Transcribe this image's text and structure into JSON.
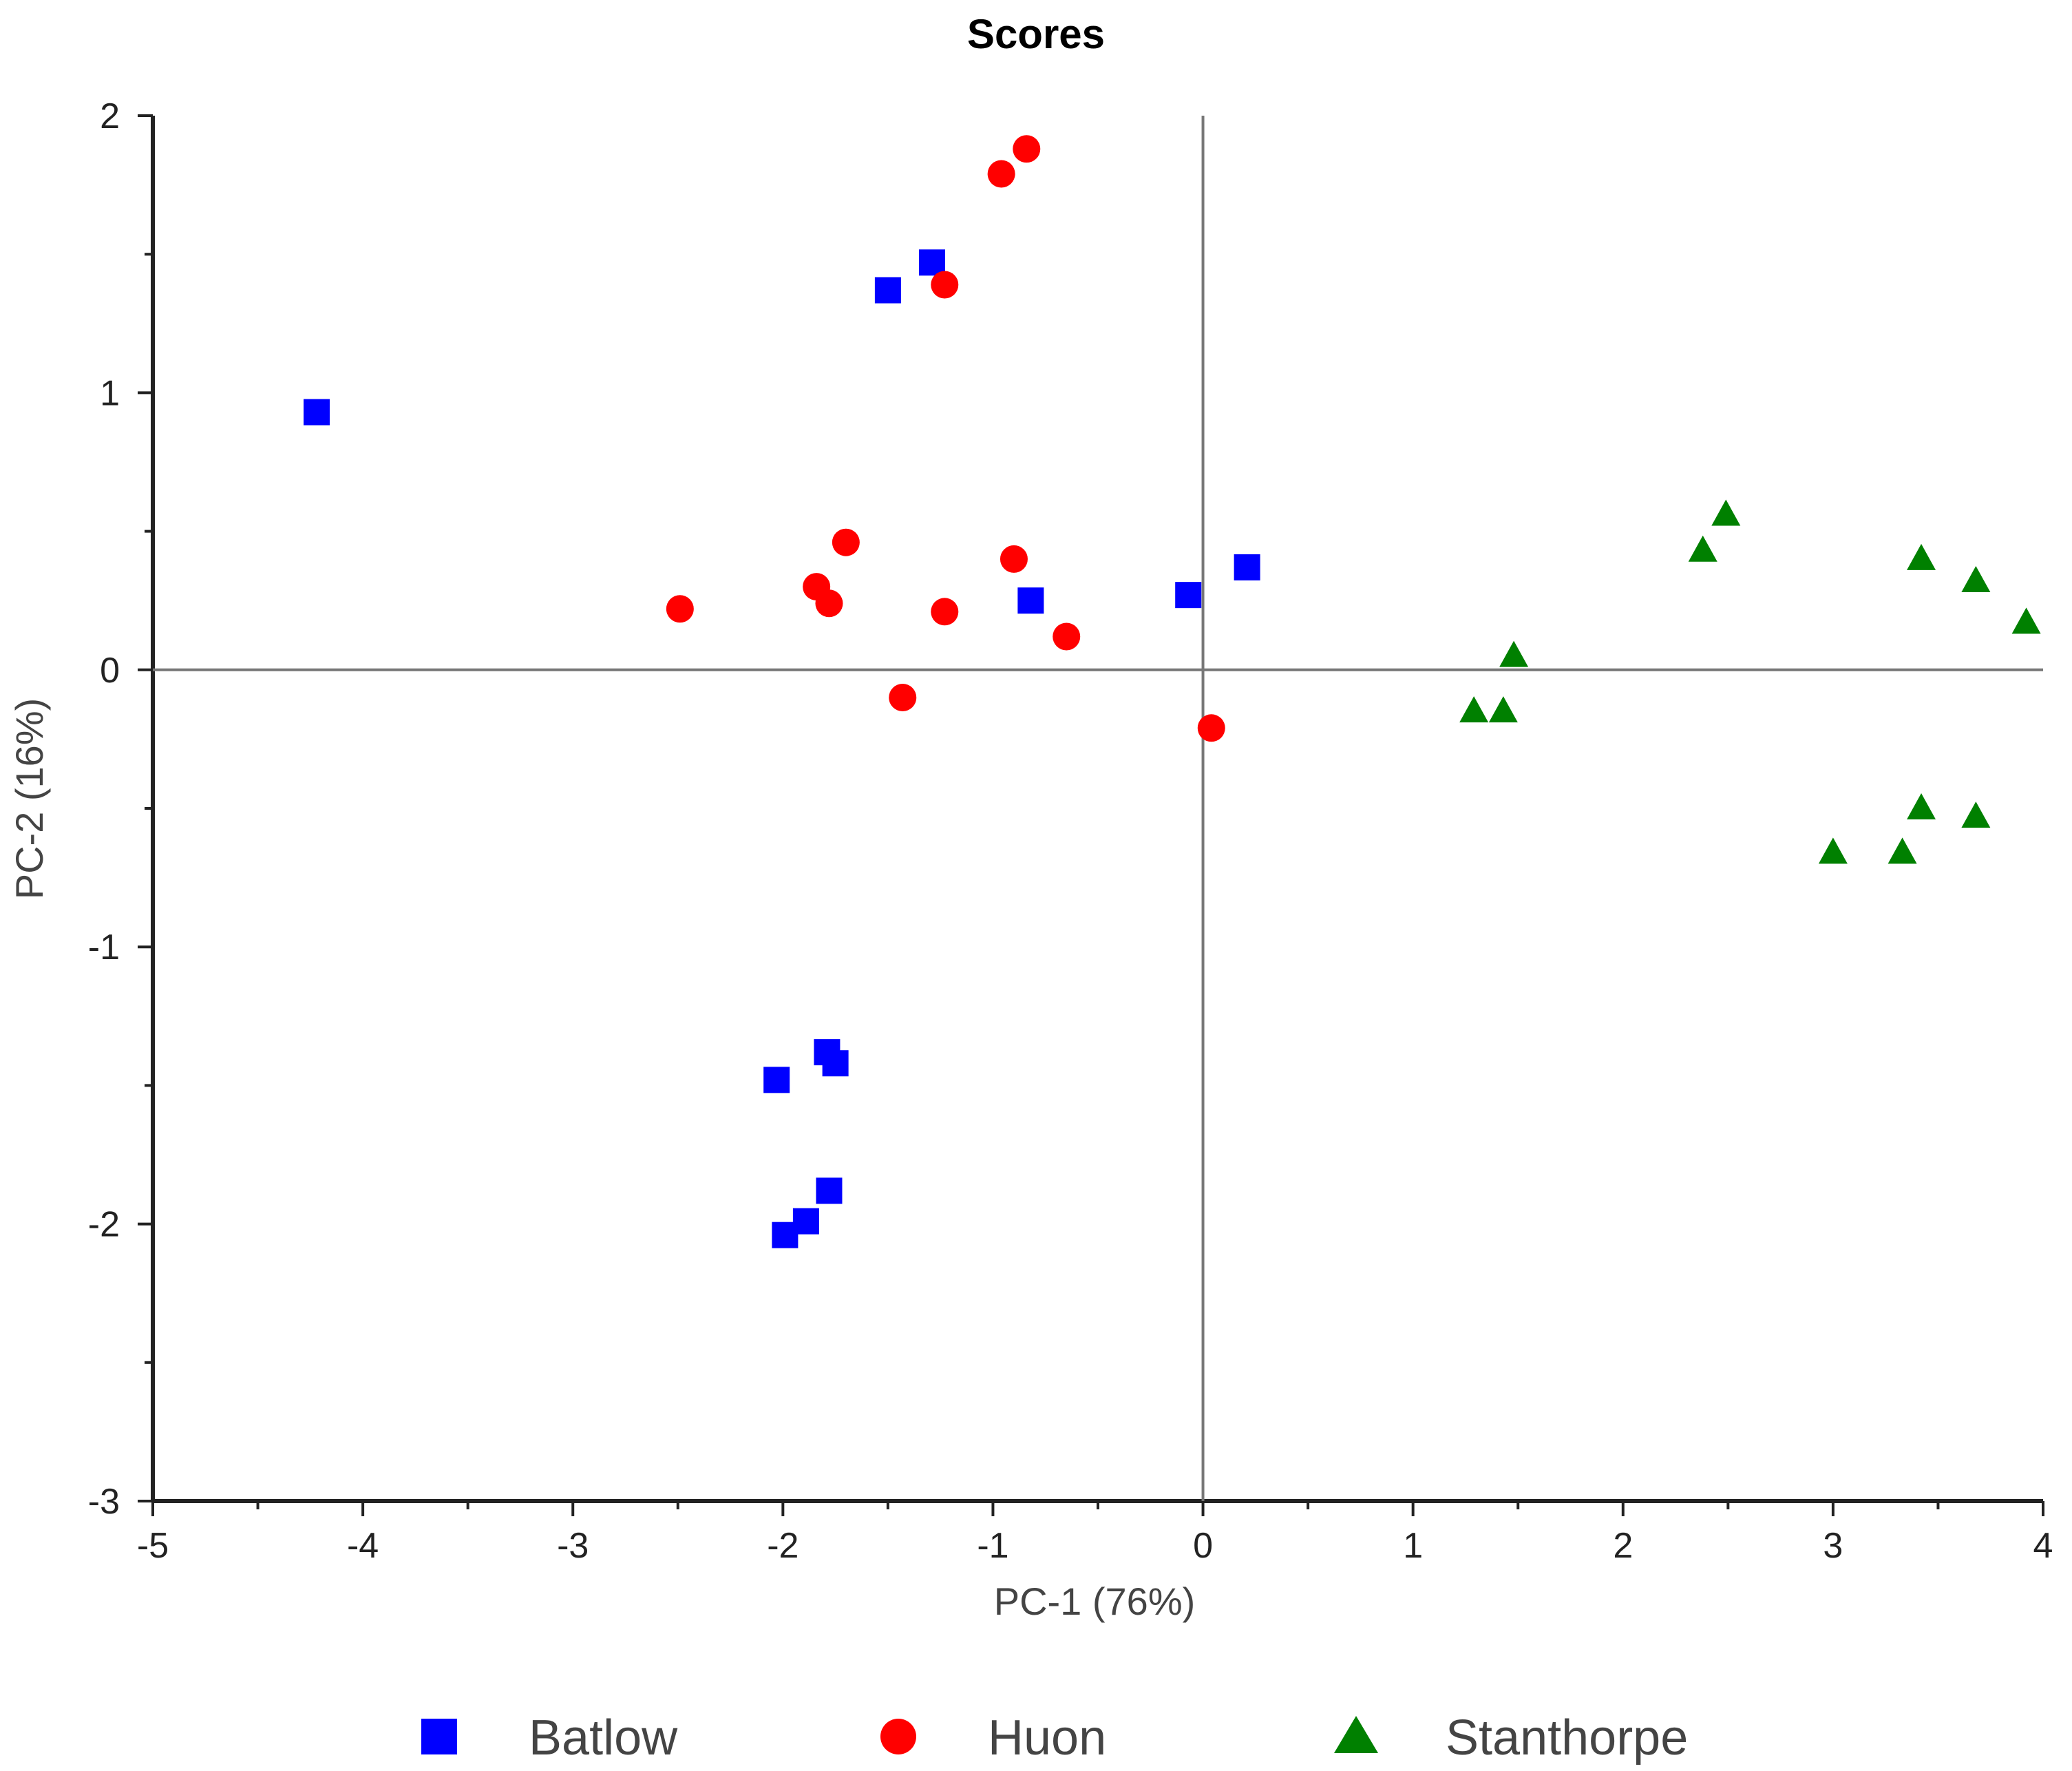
{
  "chart_data": {
    "type": "scatter",
    "title": "Scores",
    "xlabel": "PC-1 (76%)",
    "ylabel": "PC-2 (16%)",
    "xlim": [
      -5,
      4
    ],
    "ylim": [
      -3,
      2
    ],
    "xticks": [
      -5,
      -4,
      -3,
      -2,
      -1,
      0,
      1,
      2,
      3,
      4
    ],
    "yticks": [
      -3,
      -2,
      -1,
      0,
      1,
      2
    ],
    "xtick_labels": [
      "-5",
      "-4",
      "-3",
      "-2",
      "-1",
      "0",
      "1",
      "2",
      "3",
      "4"
    ],
    "ytick_labels": [
      "-3",
      "-2",
      "-1",
      "0",
      "1",
      "2"
    ],
    "grid": false,
    "reference_lines": {
      "x": 0,
      "y": 0
    },
    "legend_position": "bottom",
    "series": [
      {
        "name": "Batlow",
        "marker": "square",
        "color": "#0000ff",
        "points": [
          [
            -4.22,
            0.93
          ],
          [
            -1.5,
            1.37
          ],
          [
            -1.29,
            1.47
          ],
          [
            -0.82,
            0.25
          ],
          [
            -0.07,
            0.27
          ],
          [
            0.21,
            0.37
          ],
          [
            -2.03,
            -1.48
          ],
          [
            -1.79,
            -1.38
          ],
          [
            -1.75,
            -1.42
          ],
          [
            -1.78,
            -1.88
          ],
          [
            -1.89,
            -1.99
          ],
          [
            -1.99,
            -2.04
          ]
        ]
      },
      {
        "name": "Huon",
        "marker": "circle",
        "color": "#ff0000",
        "points": [
          [
            -0.84,
            1.88
          ],
          [
            -0.96,
            1.79
          ],
          [
            -1.23,
            1.39
          ],
          [
            -2.49,
            0.22
          ],
          [
            -1.84,
            0.3
          ],
          [
            -1.78,
            0.24
          ],
          [
            -1.7,
            0.46
          ],
          [
            -1.23,
            0.21
          ],
          [
            -0.9,
            0.4
          ],
          [
            -0.65,
            0.12
          ],
          [
            -1.43,
            -0.1
          ],
          [
            0.04,
            -0.21
          ]
        ]
      },
      {
        "name": "Stanthorpe",
        "marker": "triangle",
        "color": "#008000",
        "points": [
          [
            2.49,
            0.56
          ],
          [
            2.38,
            0.43
          ],
          [
            3.42,
            0.4
          ],
          [
            3.68,
            0.32
          ],
          [
            3.92,
            0.17
          ],
          [
            1.48,
            0.05
          ],
          [
            1.29,
            -0.15
          ],
          [
            1.43,
            -0.15
          ],
          [
            3.42,
            -0.5
          ],
          [
            3.68,
            -0.53
          ],
          [
            3.0,
            -0.66
          ],
          [
            3.33,
            -0.66
          ]
        ]
      }
    ]
  }
}
